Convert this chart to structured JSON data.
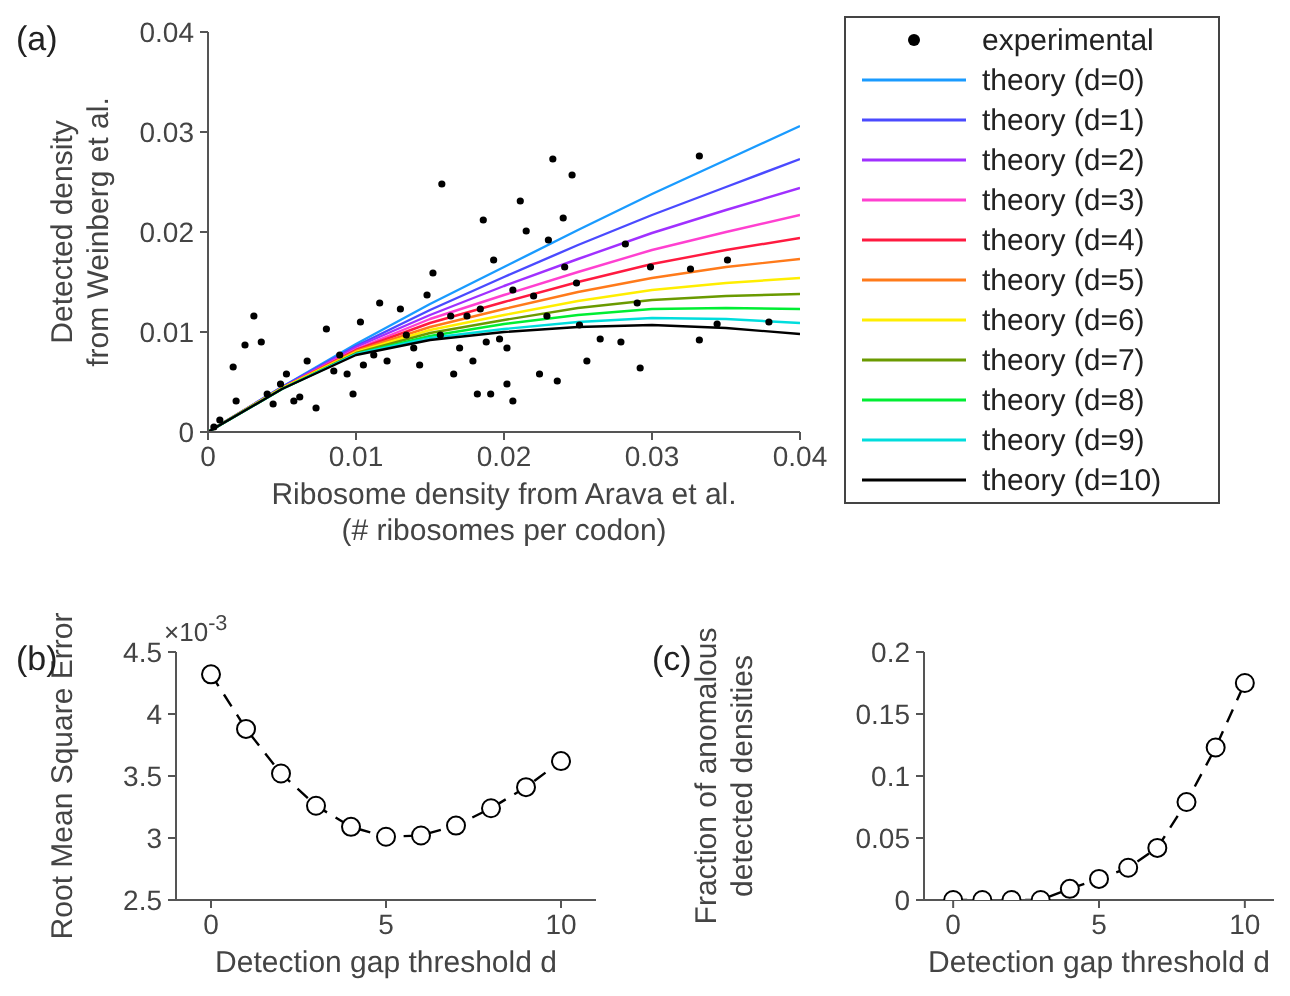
{
  "chart_data": [
    {
      "type": "line",
      "title": "(a)",
      "xlabel": "Ribosome density from Arava et al.\n(# ribosomes per codon)",
      "ylabel": "Detected density\nfrom Weinberg et al.",
      "xlim": [
        0,
        0.04
      ],
      "xticks": [
        0,
        0.01,
        0.02,
        0.03,
        0.04
      ],
      "ylim": [
        0,
        0.04
      ],
      "yticks": [
        0,
        0.01,
        0.02,
        0.03,
        0.04
      ],
      "legend": "right",
      "x": [
        0,
        0.005,
        0.01,
        0.015,
        0.02,
        0.025,
        0.03,
        0.035,
        0.04
      ],
      "series": [
        {
          "name": "experimental",
          "type": "scatter",
          "marker": "circle",
          "color": "#000000",
          "x": [
            0.0017,
            0.0031,
            0.0025,
            0.0036,
            0.0019,
            0.004,
            0.0053,
            0.0062,
            0.0073,
            0.008,
            0.0089,
            0.0098,
            0.0103,
            0.0116,
            0.013,
            0.0139,
            0.0148,
            0.0152,
            0.0158,
            0.0166,
            0.0175,
            0.0179,
            0.0182,
            0.0186,
            0.0191,
            0.0193,
            0.0202,
            0.0206,
            0.0211,
            0.0215,
            0.022,
            0.0224,
            0.023,
            0.0233,
            0.0236,
            0.024,
            0.0246,
            0.0249,
            0.0251,
            0.0256,
            0.0279,
            0.0282,
            0.029,
            0.0292,
            0.0299,
            0.0326,
            0.0332,
            0.0332,
            0.0344,
            0.0351,
            0.0379,
            0.0049,
            0.0067,
            0.0085,
            0.0112,
            0.0121,
            0.0134,
            0.0143,
            0.0157,
            0.017,
            0.0184,
            0.0197,
            0.0206,
            0.0188,
            0.0164,
            0.0094,
            0.0105,
            0.0044,
            0.0058,
            0.0008,
            0.0004,
            0.0229,
            0.0241,
            0.0265,
            0.0202
          ],
          "values": [
            0.0065,
            0.0116,
            0.0087,
            0.009,
            0.0031,
            0.0038,
            0.0058,
            0.0035,
            0.0024,
            0.0103,
            0.0077,
            0.0038,
            0.011,
            0.0129,
            0.0123,
            0.0084,
            0.0137,
            0.0159,
            0.0248,
            0.0058,
            0.0116,
            0.0071,
            0.0038,
            0.0212,
            0.0038,
            0.0172,
            0.0084,
            0.0031,
            0.0231,
            0.0201,
            0.0136,
            0.0058,
            0.0192,
            0.0273,
            0.0051,
            0.0214,
            0.0257,
            0.0149,
            0.0107,
            0.0071,
            0.009,
            0.0188,
            0.0129,
            0.0064,
            0.0165,
            0.0163,
            0.0276,
            0.0092,
            0.0108,
            0.0172,
            0.011,
            0.0048,
            0.0071,
            0.0061,
            0.0077,
            0.0071,
            0.0097,
            0.0067,
            0.0097,
            0.0084,
            0.0123,
            0.0093,
            0.0142,
            0.009,
            0.0116,
            0.0058,
            0.0067,
            0.0028,
            0.0031,
            0.0012,
            0.0005,
            0.0116,
            0.0165,
            0.0093,
            0.0048
          ]
        },
        {
          "name": "theory (d=0)",
          "color": "#1a9bff",
          "values": [
            0,
            0.0045,
            0.0088,
            0.0128,
            0.0165,
            0.0202,
            0.0238,
            0.0272,
            0.0306
          ]
        },
        {
          "name": "theory (d=1)",
          "color": "#4a4aff",
          "values": [
            0,
            0.0045,
            0.0086,
            0.0122,
            0.0155,
            0.0187,
            0.0217,
            0.0245,
            0.0273
          ]
        },
        {
          "name": "theory (d=2)",
          "color": "#a030ff",
          "values": [
            0,
            0.0044,
            0.0085,
            0.0117,
            0.0146,
            0.0173,
            0.0199,
            0.0222,
            0.0244
          ]
        },
        {
          "name": "theory (d=3)",
          "color": "#ff40d0",
          "values": [
            0,
            0.0044,
            0.0083,
            0.0113,
            0.0137,
            0.016,
            0.0182,
            0.02,
            0.0217
          ]
        },
        {
          "name": "theory (d=4)",
          "color": "#ff1a40",
          "values": [
            0,
            0.0044,
            0.0082,
            0.0109,
            0.013,
            0.015,
            0.0168,
            0.0182,
            0.0194
          ]
        },
        {
          "name": "theory (d=5)",
          "color": "#ff7a1a",
          "values": [
            0,
            0.0044,
            0.0081,
            0.0105,
            0.0123,
            0.014,
            0.0154,
            0.0165,
            0.0173
          ]
        },
        {
          "name": "theory (d=6)",
          "color": "#ffee00",
          "values": [
            0,
            0.0044,
            0.008,
            0.0102,
            0.0117,
            0.0131,
            0.0142,
            0.0149,
            0.0154
          ]
        },
        {
          "name": "theory (d=7)",
          "color": "#6a9a00",
          "values": [
            0,
            0.0043,
            0.0079,
            0.0099,
            0.0112,
            0.0124,
            0.0132,
            0.0136,
            0.0138
          ]
        },
        {
          "name": "theory (d=8)",
          "color": "#00ee33",
          "values": [
            0,
            0.0043,
            0.0078,
            0.0096,
            0.0108,
            0.0117,
            0.0123,
            0.0124,
            0.0123
          ]
        },
        {
          "name": "theory (d=9)",
          "color": "#00dddd",
          "values": [
            0,
            0.0043,
            0.0078,
            0.0094,
            0.0103,
            0.011,
            0.0114,
            0.0113,
            0.0109
          ]
        },
        {
          "name": "theory (d=10)",
          "color": "#000000",
          "values": [
            0,
            0.0043,
            0.0077,
            0.0092,
            0.01,
            0.0105,
            0.0107,
            0.0104,
            0.0098
          ]
        }
      ]
    },
    {
      "type": "line",
      "title": "(b)",
      "xlabel": "Detection gap threshold  d",
      "ylabel": "Root Mean Square Error",
      "annotations": [
        "×10$^{-3}$"
      ],
      "xlim": [
        -1,
        11
      ],
      "xticks": [
        0,
        5,
        10
      ],
      "ylim": [
        2.5,
        4.5
      ],
      "yticks": [
        2.5,
        3,
        3.5,
        4,
        4.5
      ],
      "marker": "circle",
      "line_style": "dashed",
      "x": [
        0,
        1,
        2,
        3,
        4,
        5,
        6,
        7,
        8,
        9,
        10
      ],
      "series": [
        {
          "color": "#000000",
          "values": [
            4.32,
            3.88,
            3.52,
            3.26,
            3.09,
            3.01,
            3.02,
            3.1,
            3.24,
            3.41,
            3.62
          ]
        }
      ]
    },
    {
      "type": "line",
      "title": "(c)",
      "xlabel": "Detection gap threshold  d",
      "ylabel": "Fraction of anomalous\ndetected densities",
      "xlim": [
        -1,
        11
      ],
      "xticks": [
        0,
        5,
        10
      ],
      "ylim": [
        0,
        0.2
      ],
      "yticks": [
        0,
        0.05,
        0.1,
        0.15,
        0.2
      ],
      "marker": "circle",
      "line_style": "dashed",
      "x": [
        0,
        1,
        2,
        3,
        4,
        5,
        6,
        7,
        8,
        9,
        10
      ],
      "series": [
        {
          "color": "#000000",
          "values": [
            0,
            0,
            0,
            0,
            0.009,
            0.017,
            0.026,
            0.042,
            0.079,
            0.123,
            0.175
          ]
        }
      ]
    }
  ]
}
